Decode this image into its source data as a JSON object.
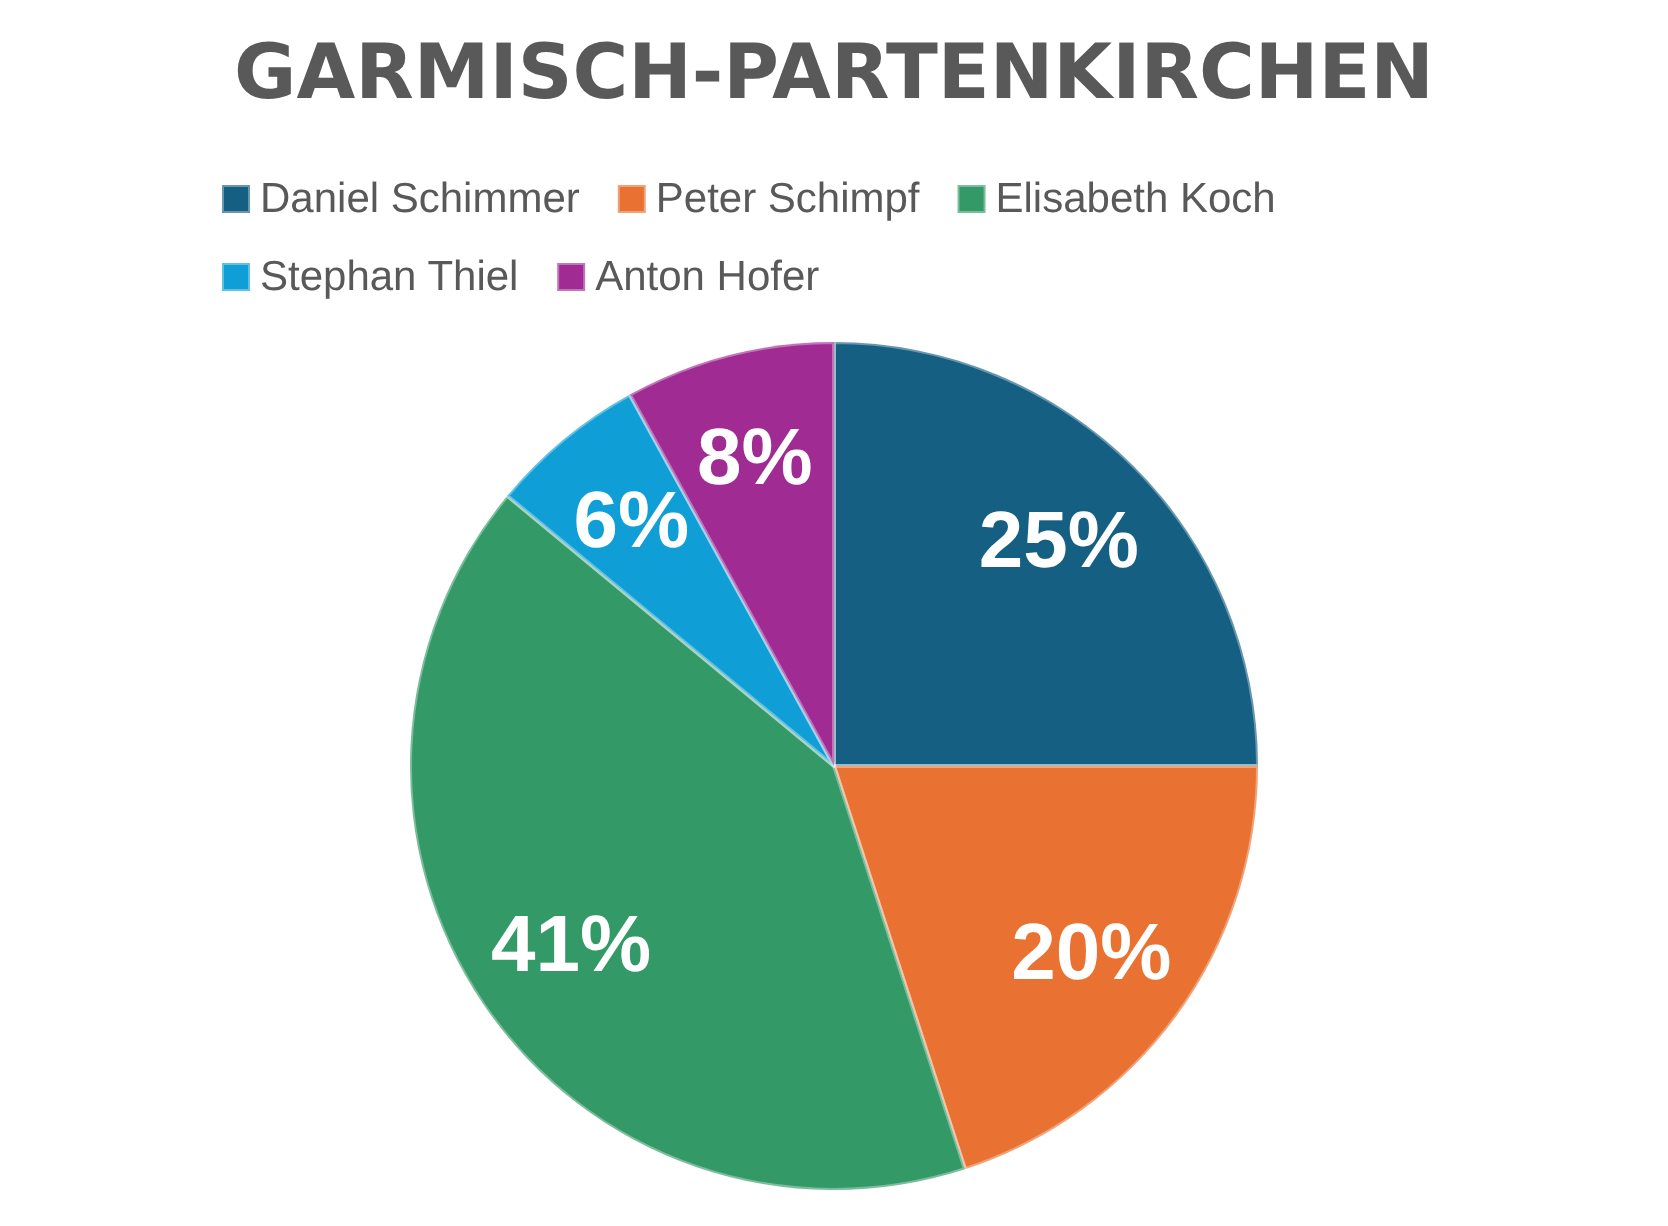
{
  "chart_data": {
    "type": "pie",
    "title": "GARMISCH-PARTENKIRCHEN",
    "categories": [
      "Daniel Schimmer",
      "Peter Schimpf",
      "Elisabeth Koch",
      "Stephan Thiel",
      "Anton Hofer"
    ],
    "values": [
      25,
      20,
      41,
      6,
      8
    ],
    "value_labels": [
      "25%",
      "20%",
      "41%",
      "6%",
      "8%"
    ],
    "colors": [
      "#156082",
      "#e97132",
      "#339966",
      "#0f9ed5",
      "#a02b93"
    ],
    "legend": "top"
  }
}
